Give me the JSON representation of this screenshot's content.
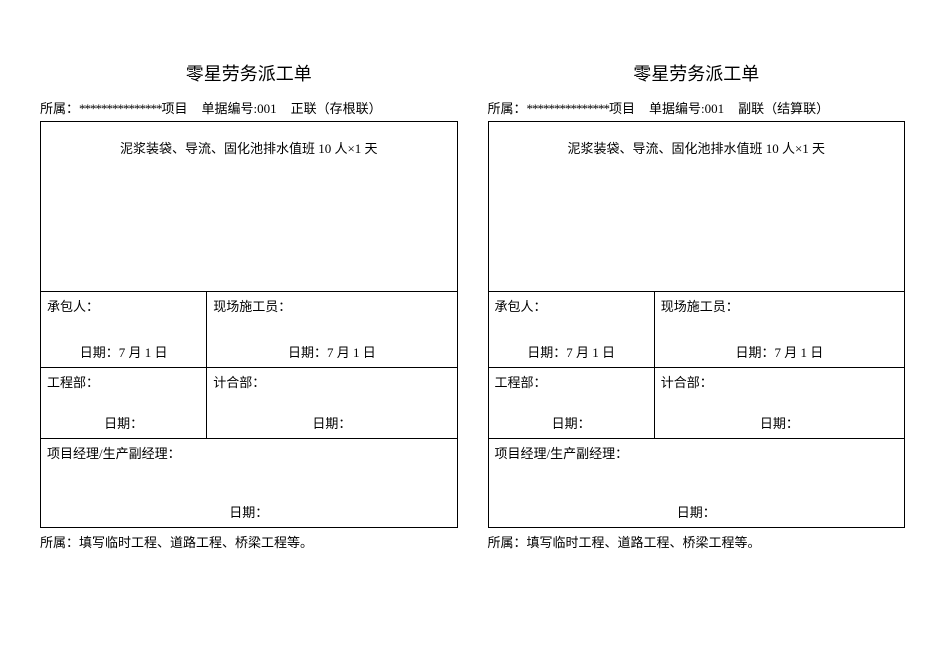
{
  "form": {
    "title": "零星劳务派工单",
    "belong_label": "所属：",
    "belong_dots": "***************",
    "project_suffix": "项目",
    "doc_no_label": "单据编号:",
    "doc_no_value": "001",
    "content_text": "泥浆装袋、导流、固化池排水值班 10 人×1 天",
    "contractor_label": "承包人：",
    "supervisor_label": "现场施工员：",
    "date_label": "日期：",
    "date_value": "7 月 1 日",
    "engineering_label": "工程部：",
    "accounting_label": "计合部：",
    "manager_label": "项目经理/生产副经理：",
    "footer": "所属：填写临时工程、道路工程、桥梁工程等。"
  },
  "copies": [
    {
      "copy_label": "正联（存根联）"
    },
    {
      "copy_label": "副联（结算联）"
    }
  ],
  "style": {
    "text_color": "#000000",
    "border_color": "#000000",
    "background": "#ffffff",
    "title_fontsize": 18,
    "body_fontsize": 13
  }
}
